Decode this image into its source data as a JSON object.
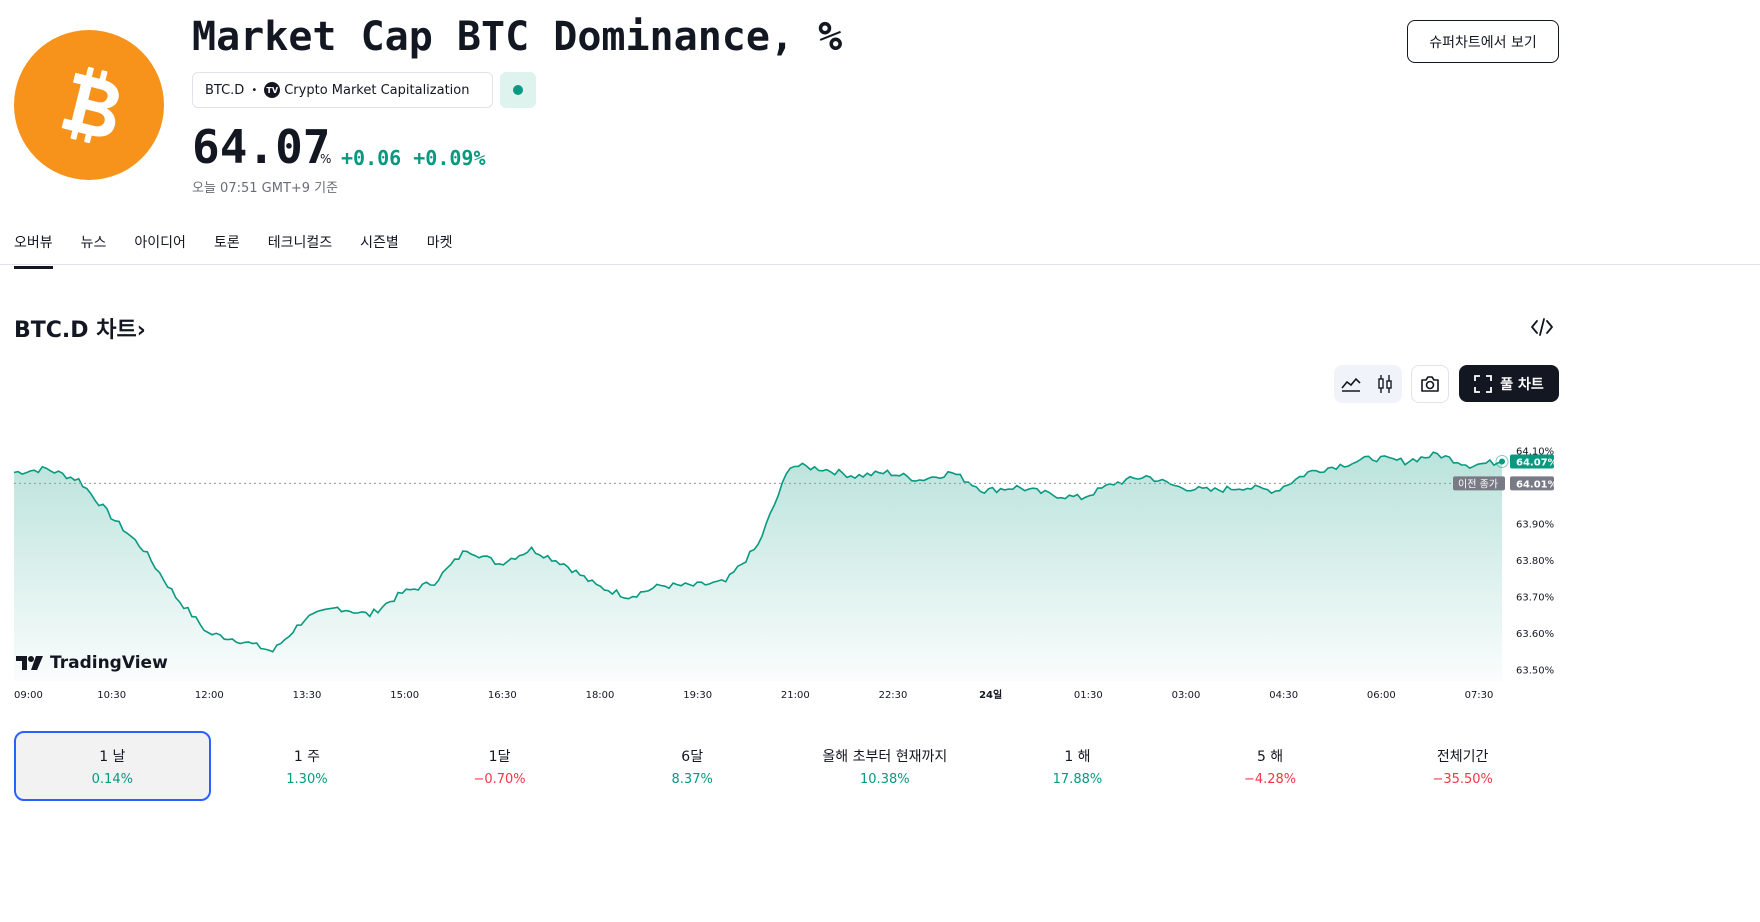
{
  "header": {
    "title": "Market Cap BTC Dominance, %",
    "ticker": "BTC.D",
    "source": "Crypto Market Capitalization",
    "price": "64.07",
    "unit": "%",
    "change": "+0.06 +0.09%",
    "timestamp": "오늘 07:51 GMT+9 기준",
    "supercharts_label": "슈퍼차트에서 보기"
  },
  "tabs": [
    {
      "label": "오버뷰",
      "active": true
    },
    {
      "label": "뉴스"
    },
    {
      "label": "아이디어"
    },
    {
      "label": "토론"
    },
    {
      "label": "테크니컬즈"
    },
    {
      "label": "시즌별"
    },
    {
      "label": "마켓"
    }
  ],
  "chart_section": {
    "heading": "BTC.D 차트",
    "heading_arrow": "›",
    "full_chart_label": "풀 차트",
    "watermark": "TradingView",
    "prev_close_label": "이전 종가"
  },
  "colors": {
    "accent_green": "#089981",
    "negative_red": "#f23645",
    "brand_orange": "#f7931a",
    "selected_border": "#2962ff"
  },
  "chart_data": {
    "type": "area",
    "x_ticks": [
      "09:00",
      "10:30",
      "12:00",
      "13:30",
      "15:00",
      "16:30",
      "18:00",
      "19:30",
      "21:00",
      "22:30",
      "24일",
      "01:30",
      "03:00",
      "04:30",
      "06:00",
      "07:30"
    ],
    "y_ticks": [
      "64.10%",
      "63.90%",
      "63.80%",
      "63.70%",
      "63.60%",
      "63.50%"
    ],
    "ylim": [
      63.48,
      64.17
    ],
    "last_value_label": "64.07%",
    "prev_close_value_label": "64.01%",
    "prev_close": 64.01,
    "last_value": 64.07,
    "series": [
      {
        "x": [
          "09:00",
          "09:30",
          "10:00",
          "10:30",
          "11:00",
          "11:30",
          "12:00",
          "12:30",
          "13:00",
          "13:30",
          "14:00",
          "14:30",
          "15:00",
          "15:30",
          "16:00",
          "16:30",
          "17:00",
          "17:30",
          "18:00",
          "18:30",
          "19:00",
          "19:30",
          "20:00",
          "20:30",
          "21:00",
          "21:30",
          "22:00",
          "22:30",
          "23:00",
          "23:30",
          "00:00",
          "00:30",
          "01:00",
          "01:30",
          "02:00",
          "02:30",
          "03:00",
          "03:30",
          "04:00",
          "04:30",
          "05:00",
          "05:30",
          "06:00",
          "06:30",
          "07:00",
          "07:30",
          "07:51"
        ],
        "values": [
          64.04,
          64.05,
          64.02,
          63.92,
          63.83,
          63.7,
          63.6,
          63.58,
          63.55,
          63.64,
          63.67,
          63.65,
          63.71,
          63.74,
          63.83,
          63.79,
          63.83,
          63.79,
          63.73,
          63.7,
          63.73,
          63.73,
          63.74,
          63.84,
          64.06,
          64.05,
          64.03,
          64.04,
          64.02,
          64.04,
          63.99,
          64.0,
          63.98,
          63.97,
          64.01,
          64.03,
          64.0,
          63.99,
          64.0,
          63.99,
          64.04,
          64.06,
          64.08,
          64.07,
          64.09,
          64.06,
          64.07
        ]
      }
    ]
  },
  "periods": [
    {
      "label": "1 날",
      "value": "0.14%",
      "sign": "pos",
      "active": true
    },
    {
      "label": "1 주",
      "value": "1.30%",
      "sign": "pos"
    },
    {
      "label": "1달",
      "value": "−0.70%",
      "sign": "neg"
    },
    {
      "label": "6달",
      "value": "8.37%",
      "sign": "pos"
    },
    {
      "label": "올해 초부터 현재까지",
      "value": "10.38%",
      "sign": "pos"
    },
    {
      "label": "1 해",
      "value": "17.88%",
      "sign": "pos"
    },
    {
      "label": "5 해",
      "value": "−4.28%",
      "sign": "neg"
    },
    {
      "label": "전체기간",
      "value": "−35.50%",
      "sign": "neg"
    }
  ]
}
